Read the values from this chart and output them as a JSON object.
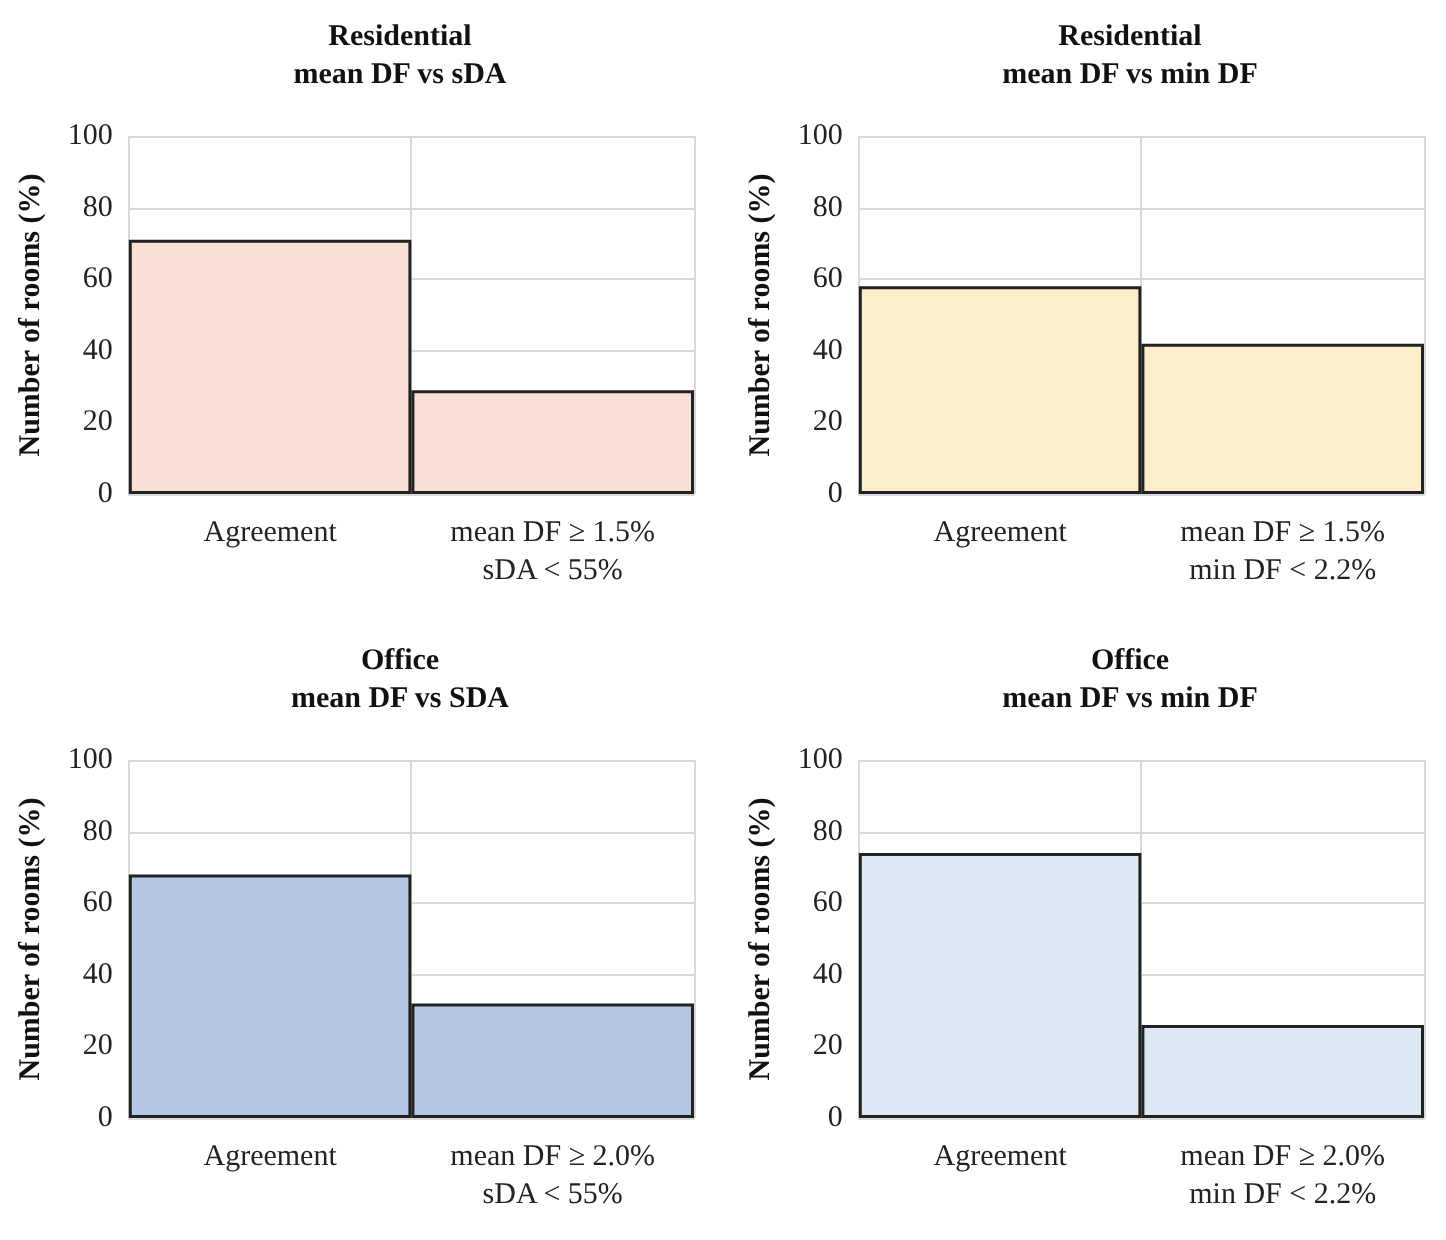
{
  "chart_data": [
    {
      "type": "bar",
      "title": "Residential\nmean DF vs sDA",
      "ylabel": "Number of rooms (%)",
      "categories": [
        "Agreement",
        "mean DF ≥ 1.5%\nsDA < 55%"
      ],
      "values": [
        71,
        29
      ],
      "color": "#f9e0d4",
      "ylim": [
        0,
        100
      ],
      "yticks": [
        0,
        20,
        40,
        60,
        80,
        100
      ],
      "grid": true
    },
    {
      "type": "bar",
      "title": "Residential\nmean DF vs min DF",
      "ylabel": "Number of rooms (%)",
      "categories": [
        "Agreement",
        "mean DF ≥ 1.5%\nmin DF < 2.2%"
      ],
      "values": [
        58,
        42
      ],
      "color": "#fdeecb",
      "ylim": [
        0,
        100
      ],
      "yticks": [
        0,
        20,
        40,
        60,
        80,
        100
      ],
      "grid": true
    },
    {
      "type": "bar",
      "title": "Office\nmean DF vs SDA",
      "ylabel": "Number of rooms (%)",
      "categories": [
        "Agreement",
        "mean DF ≥ 2.0%\nsDA < 55%"
      ],
      "values": [
        68,
        32
      ],
      "color": "#b4c7e7",
      "ylim": [
        0,
        100
      ],
      "yticks": [
        0,
        20,
        40,
        60,
        80,
        100
      ],
      "grid": true
    },
    {
      "type": "bar",
      "title": "Office\nmean DF vs min DF",
      "ylabel": "Number of rooms (%)",
      "categories": [
        "Agreement",
        "mean DF ≥ 2.0%\nmin DF < 2.2%"
      ],
      "values": [
        74,
        26
      ],
      "color": "#dee8f5",
      "ylim": [
        0,
        100
      ],
      "yticks": [
        0,
        20,
        40,
        60,
        80,
        100
      ],
      "grid": true
    }
  ]
}
